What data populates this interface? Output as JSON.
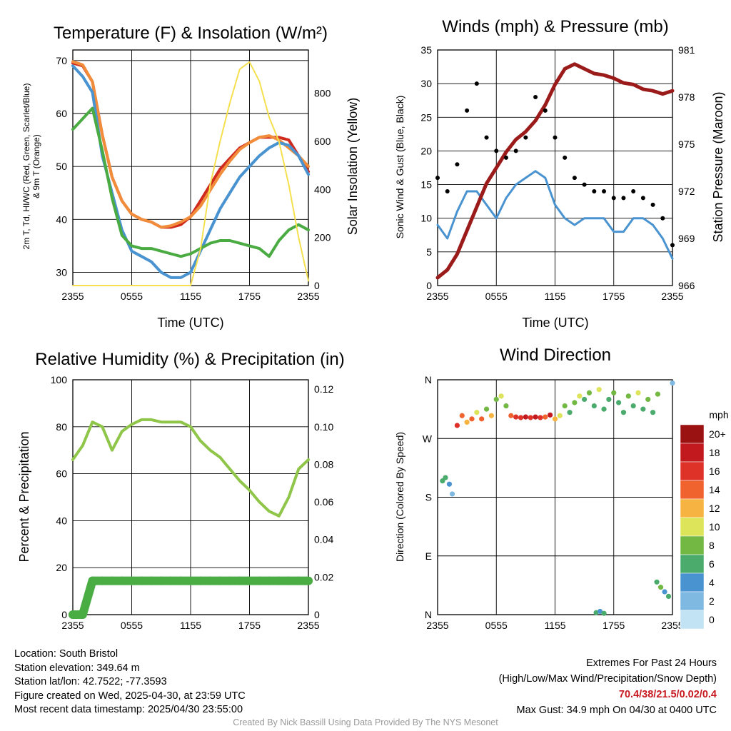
{
  "charts": {
    "temp": {
      "title": "Temperature (F) & Insolation (W/m²)",
      "ylabel_left_line1": "2m T, Td, HI/WC (Red, Green, Scarlet/Blue)",
      "ylabel_left_line2": "& 9m T (Orange)",
      "ylabel_right": "Solar Insolation (Yellow)",
      "xlabel": "Time (UTC)"
    },
    "winds": {
      "title": "Winds (mph) & Pressure (mb)",
      "ylabel_left": "Sonic Wind & Gust (Blue, Black)",
      "ylabel_right": "Station Pressure (Maroon)",
      "xlabel": "Time (UTC)"
    },
    "rh": {
      "title": "Relative Humidity (%) & Precipitation (in)",
      "ylabel_left": "Percent & Precipitation"
    },
    "dir": {
      "title": "Wind Direction",
      "ylabel_left": "Direction (Colored By Speed)",
      "colorbar_title": "mph"
    }
  },
  "footer": {
    "location": "Location: South Bristol",
    "elevation": "Station elevation: 349.64 m",
    "latlon": "Station lat/lon: 42.7522; -77.3593",
    "created": "Figure created on Wed, 2025-04-30, at 23:59 UTC",
    "recent": "Most recent data timestamp: 2025/04/30 23:55:00",
    "extremes_title": "Extremes For Past 24 Hours",
    "extremes_sub": "(High/Low/Max Wind/Precipitation/Snow Depth)",
    "extremes_values": "70.4/38/21.5/0.02/0.4",
    "max_gust": "Max Gust: 34.9 mph On 04/30 at 0400 UTC",
    "credit": "Created By Nick Bassill Using Data Provided By The NYS Mesonet"
  },
  "chart_data": [
    {
      "type": "line",
      "title": "Temperature (F) & Insolation (W/m²)",
      "xlabel": "Time (UTC)",
      "ylabel": "2m T, Td, HI/WC (Red, Green, Scarlet/Blue) & 9m T (Orange)",
      "y2label": "Solar Insolation (Yellow)",
      "x_ticks": [
        "2355",
        "0555",
        "1155",
        "1755",
        "2355"
      ],
      "x": [
        0,
        1,
        2,
        3,
        4,
        5,
        6,
        7,
        8,
        9,
        10,
        11,
        12,
        13,
        14,
        15,
        16,
        17,
        18,
        19,
        20,
        21,
        22,
        23,
        24
      ],
      "ylim": [
        27.5,
        72
      ],
      "y_ticks": [
        30,
        40,
        50,
        60,
        70
      ],
      "y2lim": [
        0,
        980
      ],
      "y2_ticks": [
        0,
        200,
        400,
        600,
        800
      ],
      "series": [
        {
          "name": "2m T",
          "color": "#d02a1f",
          "axis": "left",
          "values": [
            69.5,
            69,
            66,
            56,
            48,
            43.5,
            41,
            40,
            39.5,
            38.5,
            38.5,
            39,
            40.5,
            43.5,
            46.5,
            49.5,
            51.5,
            53.5,
            54.5,
            55.5,
            55.5,
            55.5,
            55,
            52,
            49
          ]
        },
        {
          "name": "9m T",
          "color": "#f18d3a",
          "axis": "left",
          "values": [
            69.8,
            69.2,
            66,
            56,
            48,
            43.5,
            41,
            40,
            39.5,
            38.5,
            38.8,
            39.5,
            40.5,
            42.5,
            45.5,
            48.5,
            51,
            53.2,
            54.5,
            55.5,
            55.8,
            55,
            53.5,
            52,
            50
          ]
        },
        {
          "name": "HI/WC",
          "color": "#4a93d1",
          "axis": "left",
          "values": [
            69,
            67,
            64,
            52,
            45,
            38,
            34,
            33,
            32,
            30,
            29,
            29,
            30,
            34,
            38,
            42,
            45,
            48,
            50,
            52,
            53.5,
            54.5,
            54,
            52,
            48.5
          ]
        },
        {
          "name": "2m Td",
          "color": "#4aab42",
          "axis": "left",
          "values": [
            57,
            59,
            61,
            53,
            44,
            37,
            35,
            34.5,
            34.5,
            34,
            33.5,
            33,
            33.5,
            34.5,
            35.5,
            36,
            36,
            35.5,
            35,
            34.5,
            33,
            36,
            38,
            39,
            38
          ]
        },
        {
          "name": "Solar Insolation",
          "color": "#f5e050",
          "axis": "right",
          "values": [
            0,
            0,
            0,
            0,
            0,
            0,
            0,
            0,
            0,
            0,
            0,
            0,
            0,
            150,
            420,
            600,
            760,
            900,
            930,
            850,
            700,
            600,
            420,
            200,
            20
          ]
        }
      ]
    },
    {
      "type": "line",
      "title": "Winds (mph) & Pressure (mb)",
      "xlabel": "Time (UTC)",
      "ylabel": "Sonic Wind & Gust (Blue, Black)",
      "y2label": "Station Pressure (Maroon)",
      "x_ticks": [
        "2355",
        "0555",
        "1155",
        "1755",
        "2355"
      ],
      "x": [
        0,
        1,
        2,
        3,
        4,
        5,
        6,
        7,
        8,
        9,
        10,
        11,
        12,
        13,
        14,
        15,
        16,
        17,
        18,
        19,
        20,
        21,
        22,
        23,
        24
      ],
      "ylim": [
        0,
        35
      ],
      "y_ticks": [
        0,
        5,
        10,
        15,
        20,
        25,
        30,
        35
      ],
      "y2lim": [
        966,
        981
      ],
      "y2_ticks": [
        966,
        969,
        972,
        975,
        978,
        981
      ],
      "series": [
        {
          "name": "Sonic Wind",
          "color": "#4a93d1",
          "axis": "left",
          "values": [
            9,
            7,
            11,
            14,
            14,
            12,
            10,
            13,
            15,
            16,
            17,
            16,
            12,
            10,
            9,
            10,
            10,
            10,
            8,
            8,
            10,
            10,
            9,
            7,
            4
          ]
        },
        {
          "name": "Gust",
          "color": "#000000",
          "axis": "left",
          "values": [
            16,
            14,
            18,
            26,
            30,
            22,
            20,
            19,
            20,
            22,
            28,
            26,
            22,
            19,
            16,
            15,
            14,
            14,
            13,
            13,
            14,
            13,
            12,
            10,
            6
          ]
        },
        {
          "name": "Station Pressure",
          "color": "#9b1b1b",
          "axis": "right",
          "values": [
            966.5,
            967,
            968,
            969.5,
            971,
            972.5,
            973.5,
            974.5,
            975.3,
            975.8,
            976.5,
            977.5,
            978.8,
            979.8,
            980.1,
            979.8,
            979.5,
            979.4,
            979.2,
            978.9,
            978.8,
            978.5,
            978.4,
            978.2,
            978.4
          ]
        }
      ]
    },
    {
      "type": "line",
      "title": "Relative Humidity (%) & Precipitation (in)",
      "ylabel": "Percent & Precipitation",
      "x_ticks": [
        "2355",
        "0555",
        "1155",
        "1755",
        "2355"
      ],
      "x": [
        0,
        1,
        2,
        3,
        4,
        5,
        6,
        7,
        8,
        9,
        10,
        11,
        12,
        13,
        14,
        15,
        16,
        17,
        18,
        19,
        20,
        21,
        22,
        23,
        24
      ],
      "ylim": [
        0,
        100
      ],
      "y_ticks": [
        0,
        20,
        40,
        60,
        80,
        100
      ],
      "y2lim": [
        0,
        0.125
      ],
      "y2_ticks": [
        0.0,
        0.02,
        0.04,
        0.06,
        0.08,
        0.1,
        0.12
      ],
      "series": [
        {
          "name": "Relative Humidity",
          "color": "#8fc64a",
          "axis": "left",
          "values": [
            66,
            72,
            82,
            80,
            70,
            78,
            81,
            83,
            83,
            82,
            82,
            82,
            80,
            74,
            70,
            67,
            62,
            57,
            53,
            48,
            44,
            42,
            50,
            62,
            66
          ]
        },
        {
          "name": "Precipitation",
          "color": "#49ad43",
          "axis": "right",
          "values": [
            0,
            0,
            0.018,
            0.018,
            0.018,
            0.018,
            0.018,
            0.018,
            0.018,
            0.018,
            0.018,
            0.018,
            0.018,
            0.018,
            0.018,
            0.018,
            0.018,
            0.018,
            0.018,
            0.018,
            0.018,
            0.018,
            0.018,
            0.018,
            0.018
          ]
        }
      ]
    },
    {
      "type": "scatter",
      "title": "Wind Direction",
      "ylabel": "Direction (Colored By Speed)",
      "x_ticks": [
        "2355",
        "0555",
        "1155",
        "1755",
        "2355"
      ],
      "y_ticks": [
        "N",
        "E",
        "S",
        "W",
        "N"
      ],
      "ylim": [
        0,
        360
      ],
      "colorbar": {
        "title": "mph",
        "labels": [
          "0",
          "2",
          "4",
          "6",
          "8",
          "10",
          "12",
          "14",
          "16",
          "18",
          "20+"
        ],
        "colors": [
          "#c2e3f3",
          "#7fb9e1",
          "#4a93d1",
          "#4aab6c",
          "#72b843",
          "#dde45a",
          "#f7b342",
          "#f0622e",
          "#de3127",
          "#c2191f",
          "#9b1212"
        ]
      },
      "points": [
        {
          "x": 0.5,
          "y": 205,
          "s": 6
        },
        {
          "x": 0.8,
          "y": 210,
          "s": 7
        },
        {
          "x": 1.2,
          "y": 200,
          "s": 4
        },
        {
          "x": 1.5,
          "y": 185,
          "s": 3
        },
        {
          "x": 2.0,
          "y": 290,
          "s": 16
        },
        {
          "x": 2.5,
          "y": 305,
          "s": 14
        },
        {
          "x": 3.0,
          "y": 295,
          "s": 12
        },
        {
          "x": 3.5,
          "y": 300,
          "s": 15
        },
        {
          "x": 4.0,
          "y": 310,
          "s": 10
        },
        {
          "x": 4.5,
          "y": 300,
          "s": 14
        },
        {
          "x": 5.0,
          "y": 315,
          "s": 8
        },
        {
          "x": 5.5,
          "y": 305,
          "s": 13
        },
        {
          "x": 6.0,
          "y": 330,
          "s": 8
        },
        {
          "x": 6.5,
          "y": 335,
          "s": 10
        },
        {
          "x": 7.0,
          "y": 320,
          "s": 8
        },
        {
          "x": 7.5,
          "y": 305,
          "s": 14
        },
        {
          "x": 8.0,
          "y": 303,
          "s": 16
        },
        {
          "x": 8.5,
          "y": 302,
          "s": 16
        },
        {
          "x": 9.0,
          "y": 303,
          "s": 18
        },
        {
          "x": 9.5,
          "y": 302,
          "s": 16
        },
        {
          "x": 10.0,
          "y": 303,
          "s": 18
        },
        {
          "x": 10.5,
          "y": 302,
          "s": 16
        },
        {
          "x": 11.0,
          "y": 303,
          "s": 14
        },
        {
          "x": 11.5,
          "y": 306,
          "s": 18
        },
        {
          "x": 12.0,
          "y": 300,
          "s": 12
        },
        {
          "x": 12.5,
          "y": 305,
          "s": 10
        },
        {
          "x": 13.0,
          "y": 320,
          "s": 8
        },
        {
          "x": 13.5,
          "y": 310,
          "s": 7
        },
        {
          "x": 14.0,
          "y": 325,
          "s": 8
        },
        {
          "x": 14.5,
          "y": 335,
          "s": 10
        },
        {
          "x": 15.0,
          "y": 330,
          "s": 7
        },
        {
          "x": 15.5,
          "y": 340,
          "s": 8
        },
        {
          "x": 16.0,
          "y": 320,
          "s": 6
        },
        {
          "x": 16.5,
          "y": 345,
          "s": 10
        },
        {
          "x": 17.0,
          "y": 315,
          "s": 7
        },
        {
          "x": 17.5,
          "y": 330,
          "s": 6
        },
        {
          "x": 18.0,
          "y": 340,
          "s": 8
        },
        {
          "x": 18.5,
          "y": 325,
          "s": 7
        },
        {
          "x": 19.0,
          "y": 310,
          "s": 6
        },
        {
          "x": 19.5,
          "y": 335,
          "s": 8
        },
        {
          "x": 20.0,
          "y": 320,
          "s": 7
        },
        {
          "x": 20.5,
          "y": 340,
          "s": 10
        },
        {
          "x": 21.0,
          "y": 315,
          "s": 6
        },
        {
          "x": 21.5,
          "y": 330,
          "s": 8
        },
        {
          "x": 22.0,
          "y": 310,
          "s": 7
        },
        {
          "x": 22.5,
          "y": 338,
          "s": 8
        },
        {
          "x": 16.2,
          "y": 3,
          "s": 6
        },
        {
          "x": 16.6,
          "y": 5,
          "s": 4
        },
        {
          "x": 17.0,
          "y": 2,
          "s": 6
        },
        {
          "x": 22.4,
          "y": 50,
          "s": 6
        },
        {
          "x": 22.8,
          "y": 42,
          "s": 8
        },
        {
          "x": 23.2,
          "y": 35,
          "s": 4
        },
        {
          "x": 23.6,
          "y": 28,
          "s": 6
        },
        {
          "x": 24.0,
          "y": 355,
          "s": 3
        }
      ]
    }
  ]
}
